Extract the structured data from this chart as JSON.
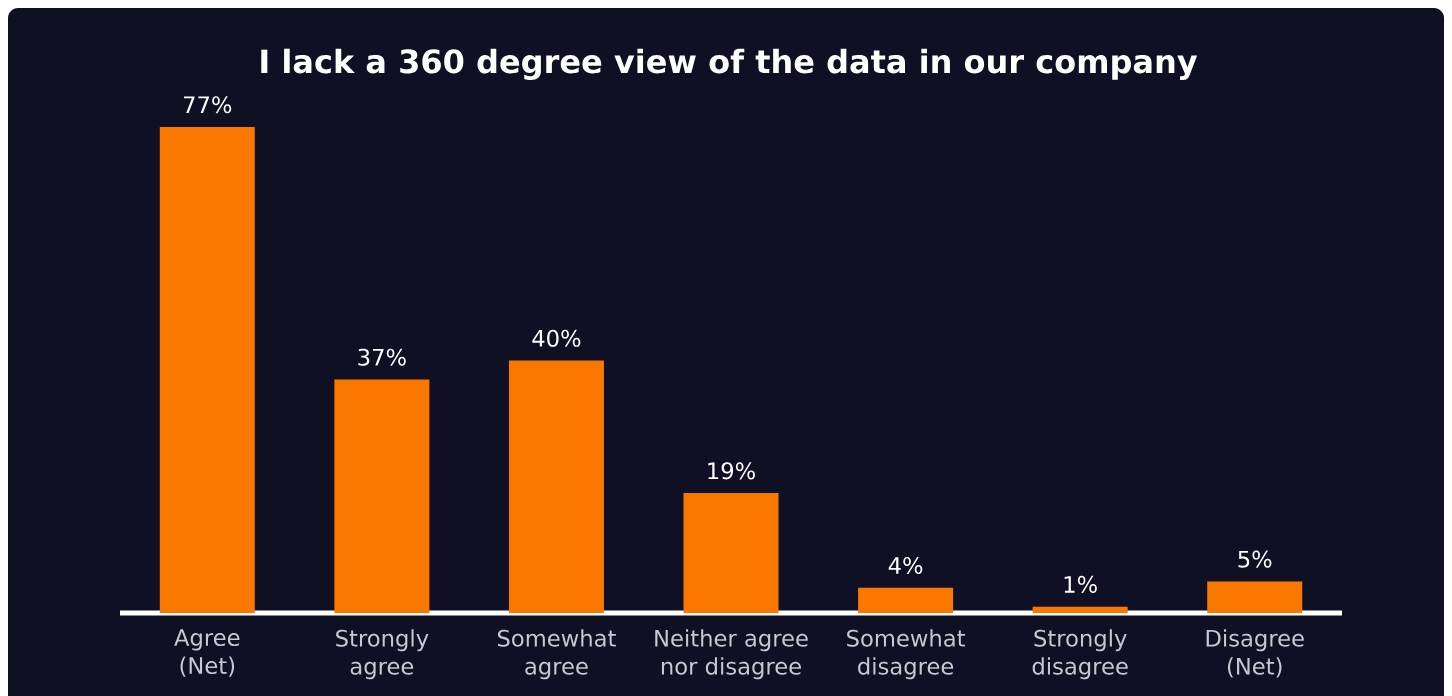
{
  "chart_data": {
    "type": "bar",
    "title": "I lack a 360 degree view of the data in our company",
    "categories": [
      "Agree (Net)",
      "Strongly agree",
      "Somewhat agree",
      "Neither agree nor disagree",
      "Somewhat disagree",
      "Strongly disagree",
      "Disagree (Net)"
    ],
    "values": [
      77,
      37,
      40,
      19,
      4,
      1,
      5
    ],
    "color": "#fa7800",
    "value_labels": [
      "77%",
      "37%",
      "40%",
      "19%",
      "4%",
      "1%",
      "5%"
    ]
  }
}
